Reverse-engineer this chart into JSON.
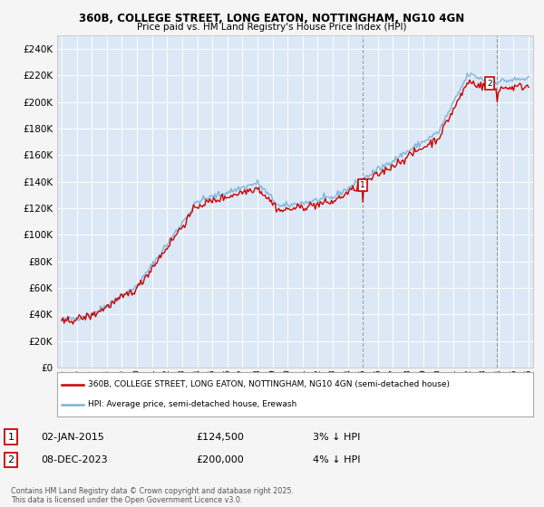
{
  "title1": "360B, COLLEGE STREET, LONG EATON, NOTTINGHAM, NG10 4GN",
  "title2": "Price paid vs. HM Land Registry's House Price Index (HPI)",
  "legend1": "360B, COLLEGE STREET, LONG EATON, NOTTINGHAM, NG10 4GN (semi-detached house)",
  "legend2": "HPI: Average price, semi-detached house, Erewash",
  "annotation1_label": "1",
  "annotation1_date": "02-JAN-2015",
  "annotation1_price": "£124,500",
  "annotation1_hpi": "3% ↓ HPI",
  "annotation2_label": "2",
  "annotation2_date": "08-DEC-2023",
  "annotation2_price": "£200,000",
  "annotation2_hpi": "4% ↓ HPI",
  "footnote": "Contains HM Land Registry data © Crown copyright and database right 2025.\nThis data is licensed under the Open Government Licence v3.0.",
  "hpi_color": "#7ab3d8",
  "price_color": "#cc0000",
  "ann_box_color": "#cc0000",
  "ylim": [
    0,
    250000
  ],
  "yticks": [
    0,
    20000,
    40000,
    60000,
    80000,
    100000,
    120000,
    140000,
    160000,
    180000,
    200000,
    220000,
    240000
  ],
  "plot_bg_color": "#dce8f5",
  "fig_bg_color": "#f5f5f5",
  "ann1_year": 2015.0,
  "ann1_price": 124500,
  "ann2_year": 2023.92,
  "ann2_price": 200000,
  "xmin": 1994.7,
  "xmax": 2026.3
}
